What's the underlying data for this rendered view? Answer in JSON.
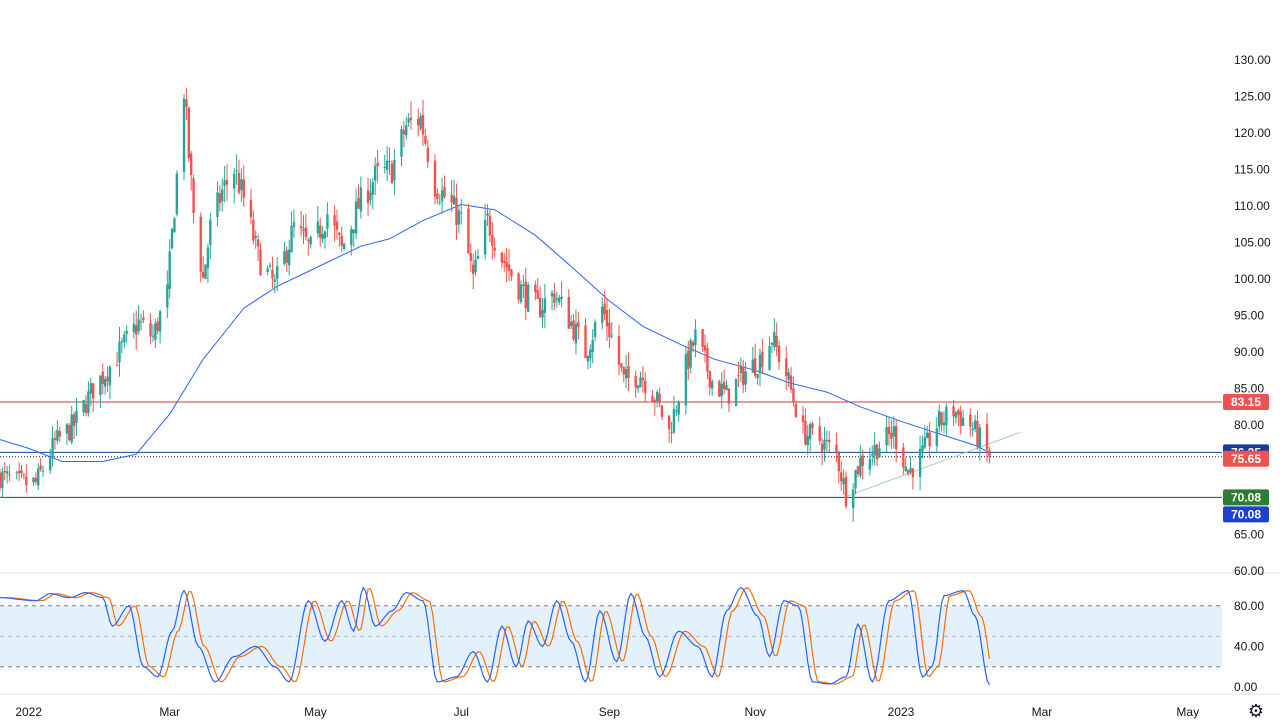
{
  "colors": {
    "up": "#26a69a",
    "down": "#ef5350",
    "ma": "#2962ff",
    "resistance": "#e03030",
    "support_blue": "#1c3f9f",
    "badge_red": "#ef5350",
    "badge_navy": "#1a3c9c",
    "badge_green": "#2e7d32",
    "badge_blue": "#1e40d0",
    "stoch_k": "#2962ff",
    "stoch_d": "#ff6d00",
    "trend": "#a5d6a7",
    "stoch_band": "#e3f1fd"
  },
  "chart_data": [
    {
      "type": "candlestick",
      "x_labels": [
        "2022",
        "Mar",
        "May",
        "Jul",
        "Sep",
        "Nov",
        "2023",
        "Mar",
        "May"
      ],
      "y_ticks": [
        "130.00",
        "125.00",
        "120.00",
        "115.00",
        "110.00",
        "105.00",
        "100.00",
        "95.00",
        "90.00",
        "85.00",
        "80.00",
        "75.00",
        "70.00",
        "65.00",
        "60.00"
      ],
      "ylim": [
        60,
        130
      ],
      "anchor_closes": [
        [
          "2021-12-20",
          73
        ],
        [
          "2021-12-28",
          72
        ],
        [
          "2022-01-04",
          72
        ],
        [
          "2022-01-12",
          77.5
        ],
        [
          "2022-01-20",
          80
        ],
        [
          "2022-01-28",
          85
        ],
        [
          "2022-02-04",
          88
        ],
        [
          "2022-02-10",
          91
        ],
        [
          "2022-02-16",
          94
        ],
        [
          "2022-02-22",
          92
        ],
        [
          "2022-02-28",
          98
        ],
        [
          "2022-03-03",
          110
        ],
        [
          "2022-03-07",
          126
        ],
        [
          "2022-03-09",
          117
        ],
        [
          "2022-03-11",
          109
        ],
        [
          "2022-03-15",
          100
        ],
        [
          "2022-03-18",
          107
        ],
        [
          "2022-03-23",
          112
        ],
        [
          "2022-03-28",
          115
        ],
        [
          "2022-04-01",
          111
        ],
        [
          "2022-04-07",
          103
        ],
        [
          "2022-04-14",
          99
        ],
        [
          "2022-04-22",
          107
        ],
        [
          "2022-04-29",
          104
        ],
        [
          "2022-05-06",
          109
        ],
        [
          "2022-05-12",
          104
        ],
        [
          "2022-05-19",
          110
        ],
        [
          "2022-05-26",
          114
        ],
        [
          "2022-06-02",
          115
        ],
        [
          "2022-06-08",
          121
        ],
        [
          "2022-06-14",
          122
        ],
        [
          "2022-06-20",
          113
        ],
        [
          "2022-06-27",
          110
        ],
        [
          "2022-07-01",
          108
        ],
        [
          "2022-07-06",
          100
        ],
        [
          "2022-07-12",
          108
        ],
        [
          "2022-07-18",
          103
        ],
        [
          "2022-07-25",
          99
        ],
        [
          "2022-08-02",
          96
        ],
        [
          "2022-08-09",
          98
        ],
        [
          "2022-08-16",
          94
        ],
        [
          "2022-08-22",
          90
        ],
        [
          "2022-08-29",
          96
        ],
        [
          "2022-09-02",
          92
        ],
        [
          "2022-09-07",
          86
        ],
        [
          "2022-09-14",
          87
        ],
        [
          "2022-09-20",
          84
        ],
        [
          "2022-09-26",
          79
        ],
        [
          "2022-10-03",
          88
        ],
        [
          "2022-10-07",
          92
        ],
        [
          "2022-10-14",
          86
        ],
        [
          "2022-10-20",
          84
        ],
        [
          "2022-10-27",
          87
        ],
        [
          "2022-11-03",
          89
        ],
        [
          "2022-11-08",
          92
        ],
        [
          "2022-11-14",
          87
        ],
        [
          "2022-11-21",
          79
        ],
        [
          "2022-11-28",
          78
        ],
        [
          "2022-12-05",
          76
        ],
        [
          "2022-12-09",
          70.5
        ],
        [
          "2022-12-15",
          75
        ],
        [
          "2022-12-22",
          77
        ],
        [
          "2022-12-29",
          79
        ],
        [
          "2023-01-04",
          73.5
        ],
        [
          "2023-01-10",
          76
        ],
        [
          "2023-01-16",
          80
        ],
        [
          "2023-01-23",
          82
        ],
        [
          "2023-01-30",
          80
        ],
        [
          "2023-02-03",
          78
        ],
        [
          "2023-02-07",
          75.65
        ]
      ],
      "moving_average": [
        [
          "2021-12-20",
          78
        ],
        [
          "2022-01-01",
          76.8
        ],
        [
          "2022-01-15",
          75
        ],
        [
          "2022-02-01",
          75
        ],
        [
          "2022-02-15",
          76
        ],
        [
          "2022-03-01",
          81.5
        ],
        [
          "2022-03-15",
          89
        ],
        [
          "2022-04-01",
          96
        ],
        [
          "2022-04-15",
          99
        ],
        [
          "2022-05-01",
          101.5
        ],
        [
          "2022-05-20",
          104.5
        ],
        [
          "2022-06-01",
          105.5
        ],
        [
          "2022-06-15",
          108
        ],
        [
          "2022-07-01",
          110.2
        ],
        [
          "2022-07-15",
          109.5
        ],
        [
          "2022-08-01",
          106
        ],
        [
          "2022-08-15",
          102
        ],
        [
          "2022-09-01",
          97
        ],
        [
          "2022-09-15",
          93.5
        ],
        [
          "2022-10-01",
          91
        ],
        [
          "2022-10-15",
          89
        ],
        [
          "2022-11-01",
          87.5
        ],
        [
          "2022-11-15",
          85.8
        ],
        [
          "2022-12-01",
          84.5
        ],
        [
          "2022-12-15",
          82.5
        ],
        [
          "2023-01-01",
          80.5
        ],
        [
          "2023-01-15",
          79
        ],
        [
          "2023-02-01",
          77.2
        ],
        [
          "2023-02-07",
          76.25
        ]
      ],
      "levels": [
        {
          "value": 83.15,
          "label": "83.15",
          "line": "resistance",
          "badge": "badge_red"
        },
        {
          "value": 76.25,
          "label": "76.25",
          "line": "support_blue",
          "badge": "badge_navy"
        },
        {
          "value": 75.65,
          "label": "75.65",
          "line": "dotted",
          "badge": "badge_red"
        },
        {
          "value": 70.08,
          "label": "70.08",
          "line": "support_blue",
          "badge": "badge_green"
        },
        {
          "value": 70.08,
          "label": "70.08",
          "line": "none",
          "badge": "badge_blue"
        }
      ],
      "trendline": [
        [
          "2022-12-09",
          70.2
        ],
        [
          "2023-02-20",
          79
        ]
      ]
    },
    {
      "type": "line",
      "name": "stochastic",
      "y_ticks": [
        "80.00",
        "40.00",
        "0.00"
      ],
      "ylim": [
        0,
        100
      ],
      "bands": [
        80,
        50,
        20
      ],
      "k_anchors": [
        [
          "2021-12-20",
          88
        ],
        [
          "2022-01-04",
          85
        ],
        [
          "2022-01-10",
          92
        ],
        [
          "2022-01-18",
          88
        ],
        [
          "2022-01-25",
          93
        ],
        [
          "2022-02-01",
          88
        ],
        [
          "2022-02-05",
          60
        ],
        [
          "2022-02-12",
          80
        ],
        [
          "2022-02-18",
          20
        ],
        [
          "2022-02-24",
          10
        ],
        [
          "2022-03-02",
          55
        ],
        [
          "2022-03-07",
          95
        ],
        [
          "2022-03-13",
          40
        ],
        [
          "2022-03-20",
          5
        ],
        [
          "2022-03-28",
          30
        ],
        [
          "2022-04-06",
          40
        ],
        [
          "2022-04-14",
          20
        ],
        [
          "2022-04-20",
          5
        ],
        [
          "2022-04-28",
          85
        ],
        [
          "2022-05-05",
          45
        ],
        [
          "2022-05-12",
          85
        ],
        [
          "2022-05-17",
          55
        ],
        [
          "2022-05-21",
          98
        ],
        [
          "2022-05-26",
          60
        ],
        [
          "2022-06-02",
          75
        ],
        [
          "2022-06-08",
          93
        ],
        [
          "2022-06-15",
          85
        ],
        [
          "2022-06-21",
          5
        ],
        [
          "2022-06-29",
          10
        ],
        [
          "2022-07-06",
          35
        ],
        [
          "2022-07-12",
          5
        ],
        [
          "2022-07-18",
          60
        ],
        [
          "2022-07-24",
          20
        ],
        [
          "2022-07-29",
          65
        ],
        [
          "2022-08-04",
          40
        ],
        [
          "2022-08-10",
          85
        ],
        [
          "2022-08-16",
          45
        ],
        [
          "2022-08-22",
          5
        ],
        [
          "2022-08-28",
          75
        ],
        [
          "2022-09-04",
          25
        ],
        [
          "2022-09-10",
          92
        ],
        [
          "2022-09-16",
          50
        ],
        [
          "2022-09-22",
          10
        ],
        [
          "2022-09-30",
          55
        ],
        [
          "2022-10-08",
          40
        ],
        [
          "2022-10-14",
          10
        ],
        [
          "2022-10-20",
          75
        ],
        [
          "2022-10-26",
          98
        ],
        [
          "2022-11-02",
          70
        ],
        [
          "2022-11-07",
          30
        ],
        [
          "2022-11-13",
          85
        ],
        [
          "2022-11-19",
          80
        ],
        [
          "2022-11-25",
          5
        ],
        [
          "2022-12-02",
          3
        ],
        [
          "2022-12-09",
          10
        ],
        [
          "2022-12-14",
          62
        ],
        [
          "2022-12-20",
          5
        ],
        [
          "2022-12-27",
          85
        ],
        [
          "2023-01-04",
          95
        ],
        [
          "2023-01-10",
          10
        ],
        [
          "2023-01-14",
          20
        ],
        [
          "2023-01-19",
          90
        ],
        [
          "2023-01-27",
          95
        ],
        [
          "2023-02-01",
          70
        ],
        [
          "2023-02-07",
          2
        ]
      ]
    }
  ]
}
